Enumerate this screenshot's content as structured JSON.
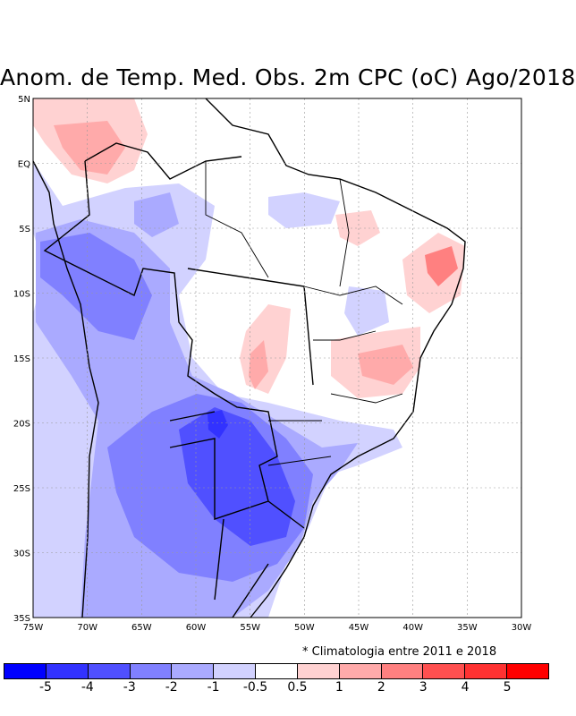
{
  "title": "Anom. de Temp. Med. Obs. 2m CPC (oC) Ago/2018",
  "footnote": "* Climatologia entre 2011 e 2018",
  "lat_labels": [
    "5N",
    "EQ",
    "5S",
    "10S",
    "15S",
    "20S",
    "25S",
    "30S",
    "35S"
  ],
  "lon_labels": [
    "75W",
    "70W",
    "65W",
    "60W",
    "55W",
    "50W",
    "45W",
    "40W",
    "35W",
    "30W"
  ],
  "colorbar": {
    "colors": [
      "#0000ff",
      "#3232ff",
      "#5050ff",
      "#8080ff",
      "#aaaaff",
      "#d2d2ff",
      "#ffffff",
      "#ffd2d2",
      "#ffaaaa",
      "#ff8080",
      "#ff5050",
      "#ff3232",
      "#ff0000"
    ],
    "labels": [
      "-5",
      "-4",
      "-3",
      "-2",
      "-1",
      "-0.5",
      "0.5",
      "1",
      "2",
      "3",
      "4",
      "5"
    ]
  }
}
